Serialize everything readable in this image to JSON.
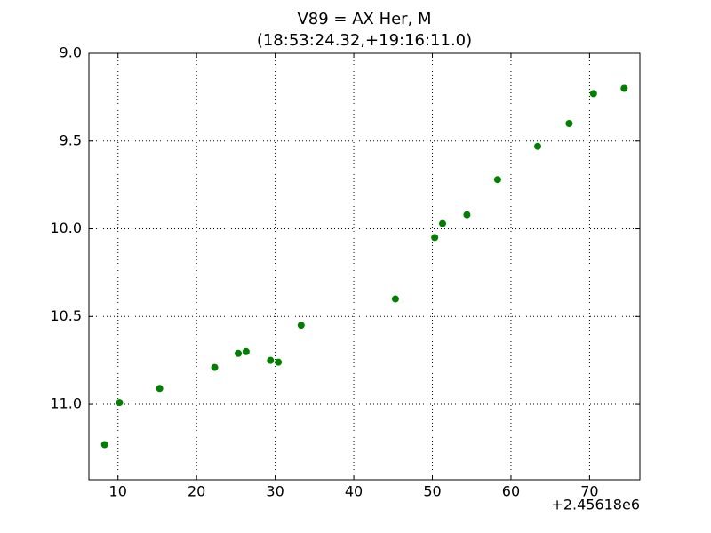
{
  "chart_data": {
    "type": "scatter",
    "title": "V89 = AX Her, M",
    "subtitle": "(18:53:24.32,+19:16:11.0)",
    "x_offset_label": "+2.45618e6",
    "color": "#007f00",
    "x": [
      8.3,
      10.2,
      15.3,
      22.3,
      25.3,
      26.3,
      29.4,
      30.4,
      33.3,
      45.3,
      50.3,
      51.3,
      54.4,
      58.3,
      63.4,
      67.4,
      70.5,
      74.4
    ],
    "values": [
      11.23,
      10.99,
      10.91,
      10.79,
      10.71,
      10.7,
      10.75,
      10.76,
      10.55,
      10.4,
      10.05,
      9.97,
      9.92,
      9.72,
      9.53,
      9.4,
      9.23,
      9.2
    ],
    "xlim": [
      6.3,
      76.4
    ],
    "xticks": [
      10,
      20,
      30,
      40,
      50,
      60,
      70
    ],
    "ylim": [
      11.43,
      9.0
    ],
    "yticks": [
      {
        "value": 9.0,
        "label": "9.0"
      },
      {
        "value": 9.5,
        "label": "9.5"
      },
      {
        "value": 10.0,
        "label": "10.0"
      },
      {
        "value": 10.5,
        "label": "10.5"
      },
      {
        "value": 11.0,
        "label": "11.0"
      }
    ],
    "grid": true
  }
}
